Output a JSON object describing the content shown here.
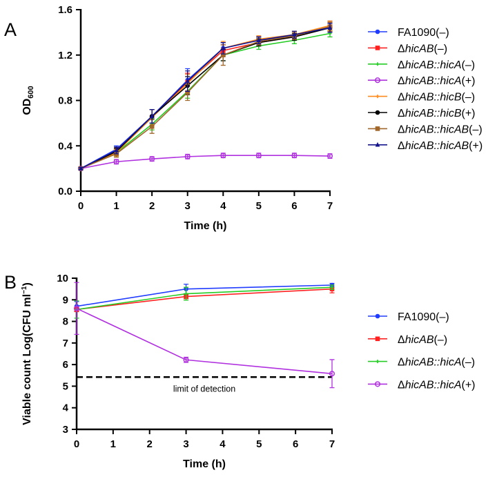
{
  "chart_data": [
    {
      "panel_label": "A",
      "type": "line",
      "xlabel": "Time (h)",
      "ylabel": "OD",
      "ylabel_sub": "600",
      "xlim": [
        0,
        7
      ],
      "ylim": [
        0,
        1.6
      ],
      "xticks": [
        "0",
        "1",
        "2",
        "3",
        "4",
        "5",
        "6",
        "7"
      ],
      "yticks": [
        "0.0",
        "0.4",
        "0.8",
        "1.2",
        "1.6"
      ],
      "grid": false,
      "legend_position": "right",
      "x": [
        0,
        1,
        2,
        3,
        4,
        5,
        6,
        7
      ],
      "series": [
        {
          "name": "FA1090(–)",
          "color": "#1f3cff",
          "marker": "circle",
          "values": [
            0.2,
            0.37,
            0.66,
            0.98,
            1.26,
            1.33,
            1.37,
            1.45
          ],
          "errors": [
            0.01,
            0.03,
            0.06,
            0.1,
            0.05,
            0.03,
            0.04,
            0.05
          ]
        },
        {
          "name": "ΔhicAB(–)",
          "color": "#ff2020",
          "marker": "square",
          "values": [
            0.2,
            0.35,
            0.65,
            0.96,
            1.24,
            1.31,
            1.36,
            1.45
          ],
          "errors": [
            0.01,
            0.03,
            0.07,
            0.08,
            0.05,
            0.03,
            0.03,
            0.04
          ]
        },
        {
          "name": "ΔhicAB::hicA(–)",
          "color": "#22cc22",
          "marker": "star",
          "values": [
            0.2,
            0.34,
            0.59,
            0.88,
            1.2,
            1.28,
            1.33,
            1.39
          ],
          "errors": [
            0.01,
            0.03,
            0.05,
            0.06,
            0.05,
            0.03,
            0.03,
            0.03
          ]
        },
        {
          "name": "ΔhicAB::hicA(+)",
          "color": "#b030e0",
          "marker": "open-circle",
          "values": [
            0.2,
            0.26,
            0.285,
            0.305,
            0.315,
            0.315,
            0.315,
            0.31
          ],
          "errors": [
            0.01,
            0.02,
            0.02,
            0.02,
            0.02,
            0.02,
            0.02,
            0.02
          ]
        },
        {
          "name": "ΔhicAB::hicB(–)",
          "color": "#ff8a1a",
          "marker": "star",
          "values": [
            0.2,
            0.34,
            0.65,
            0.95,
            1.26,
            1.34,
            1.38,
            1.46
          ],
          "errors": [
            0.01,
            0.03,
            0.07,
            0.08,
            0.06,
            0.03,
            0.03,
            0.04
          ]
        },
        {
          "name": "ΔhicAB::hicB(+)",
          "color": "#000000",
          "marker": "circle",
          "values": [
            0.2,
            0.35,
            0.66,
            0.93,
            1.2,
            1.31,
            1.36,
            1.44
          ],
          "errors": [
            0.01,
            0.03,
            0.06,
            0.08,
            0.05,
            0.03,
            0.03,
            0.04
          ]
        },
        {
          "name": "ΔhicAB::hicAB(–)",
          "color": "#a0662a",
          "marker": "square",
          "values": [
            0.2,
            0.33,
            0.57,
            0.87,
            1.2,
            1.32,
            1.37,
            1.45
          ],
          "errors": [
            0.01,
            0.03,
            0.06,
            0.07,
            0.09,
            0.03,
            0.03,
            0.04
          ]
        },
        {
          "name": "ΔhicAB::hicAB(+)",
          "color": "#14148c",
          "marker": "triangle",
          "values": [
            0.2,
            0.36,
            0.66,
            0.97,
            1.26,
            1.33,
            1.38,
            1.44
          ],
          "errors": [
            0.01,
            0.03,
            0.06,
            0.09,
            0.05,
            0.03,
            0.03,
            0.04
          ]
        }
      ]
    },
    {
      "panel_label": "B",
      "type": "line",
      "xlabel": "Time (h)",
      "ylabel": "Viable count Log(CFU ml",
      "ylabel_sup": "−1",
      "ylabel_end": ")",
      "xlim": [
        0,
        7
      ],
      "ylim": [
        3,
        10
      ],
      "xticks": [
        "0",
        "1",
        "2",
        "3",
        "4",
        "5",
        "6",
        "7"
      ],
      "yticks": [
        "3",
        "4",
        "5",
        "6",
        "7",
        "8",
        "9",
        "10"
      ],
      "grid": false,
      "legend_position": "right",
      "x": [
        0,
        3,
        7
      ],
      "series": [
        {
          "name": "FA1090(–)",
          "color": "#1f3cff",
          "marker": "circle",
          "values": [
            8.7,
            9.5,
            9.68
          ],
          "errors": [
            0.22,
            0.22,
            0.08
          ]
        },
        {
          "name": "ΔhicAB(–)",
          "color": "#ff2020",
          "marker": "square",
          "values": [
            8.55,
            9.15,
            9.5
          ],
          "errors": [
            0.1,
            0.1,
            0.18
          ]
        },
        {
          "name": "ΔhicAB::hicA(–)",
          "color": "#22cc22",
          "marker": "star",
          "values": [
            8.55,
            9.28,
            9.58
          ],
          "errors": [
            0.4,
            0.3,
            0.1
          ]
        },
        {
          "name": "ΔhicAB::hicA(+)",
          "color": "#b030e0",
          "marker": "open-circle",
          "values": [
            8.6,
            6.22,
            5.58
          ],
          "errors": [
            1.2,
            0.12,
            0.65
          ]
        }
      ],
      "reference_line": {
        "y": 5.42,
        "label": "limit of detection",
        "style": "dashed"
      }
    }
  ]
}
